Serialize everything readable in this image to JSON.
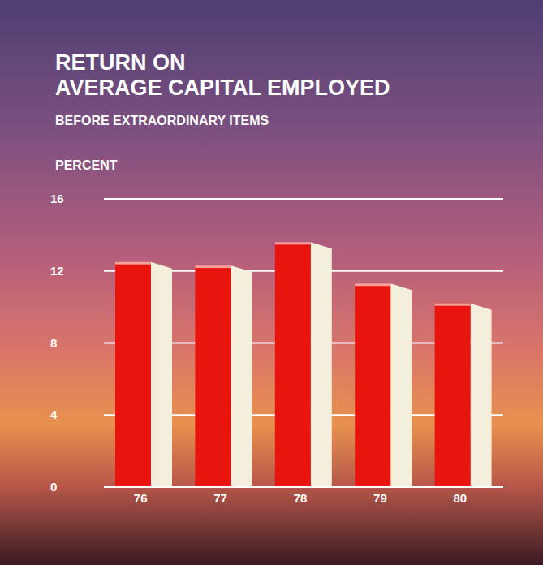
{
  "chart_data": {
    "type": "bar",
    "title": "RETURN ON\nAVERAGE CAPITAL EMPLOYED",
    "subtitle": "BEFORE EXTRAORDINARY ITEMS",
    "y_label": "PERCENT",
    "categories": [
      "76",
      "77",
      "78",
      "79",
      "80"
    ],
    "values": [
      12.5,
      12.3,
      13.6,
      11.3,
      10.2
    ],
    "color": "#e8140e",
    "ylim": [
      0,
      16
    ],
    "yticks": [
      0,
      4,
      8,
      12,
      16
    ],
    "grid": true
  }
}
